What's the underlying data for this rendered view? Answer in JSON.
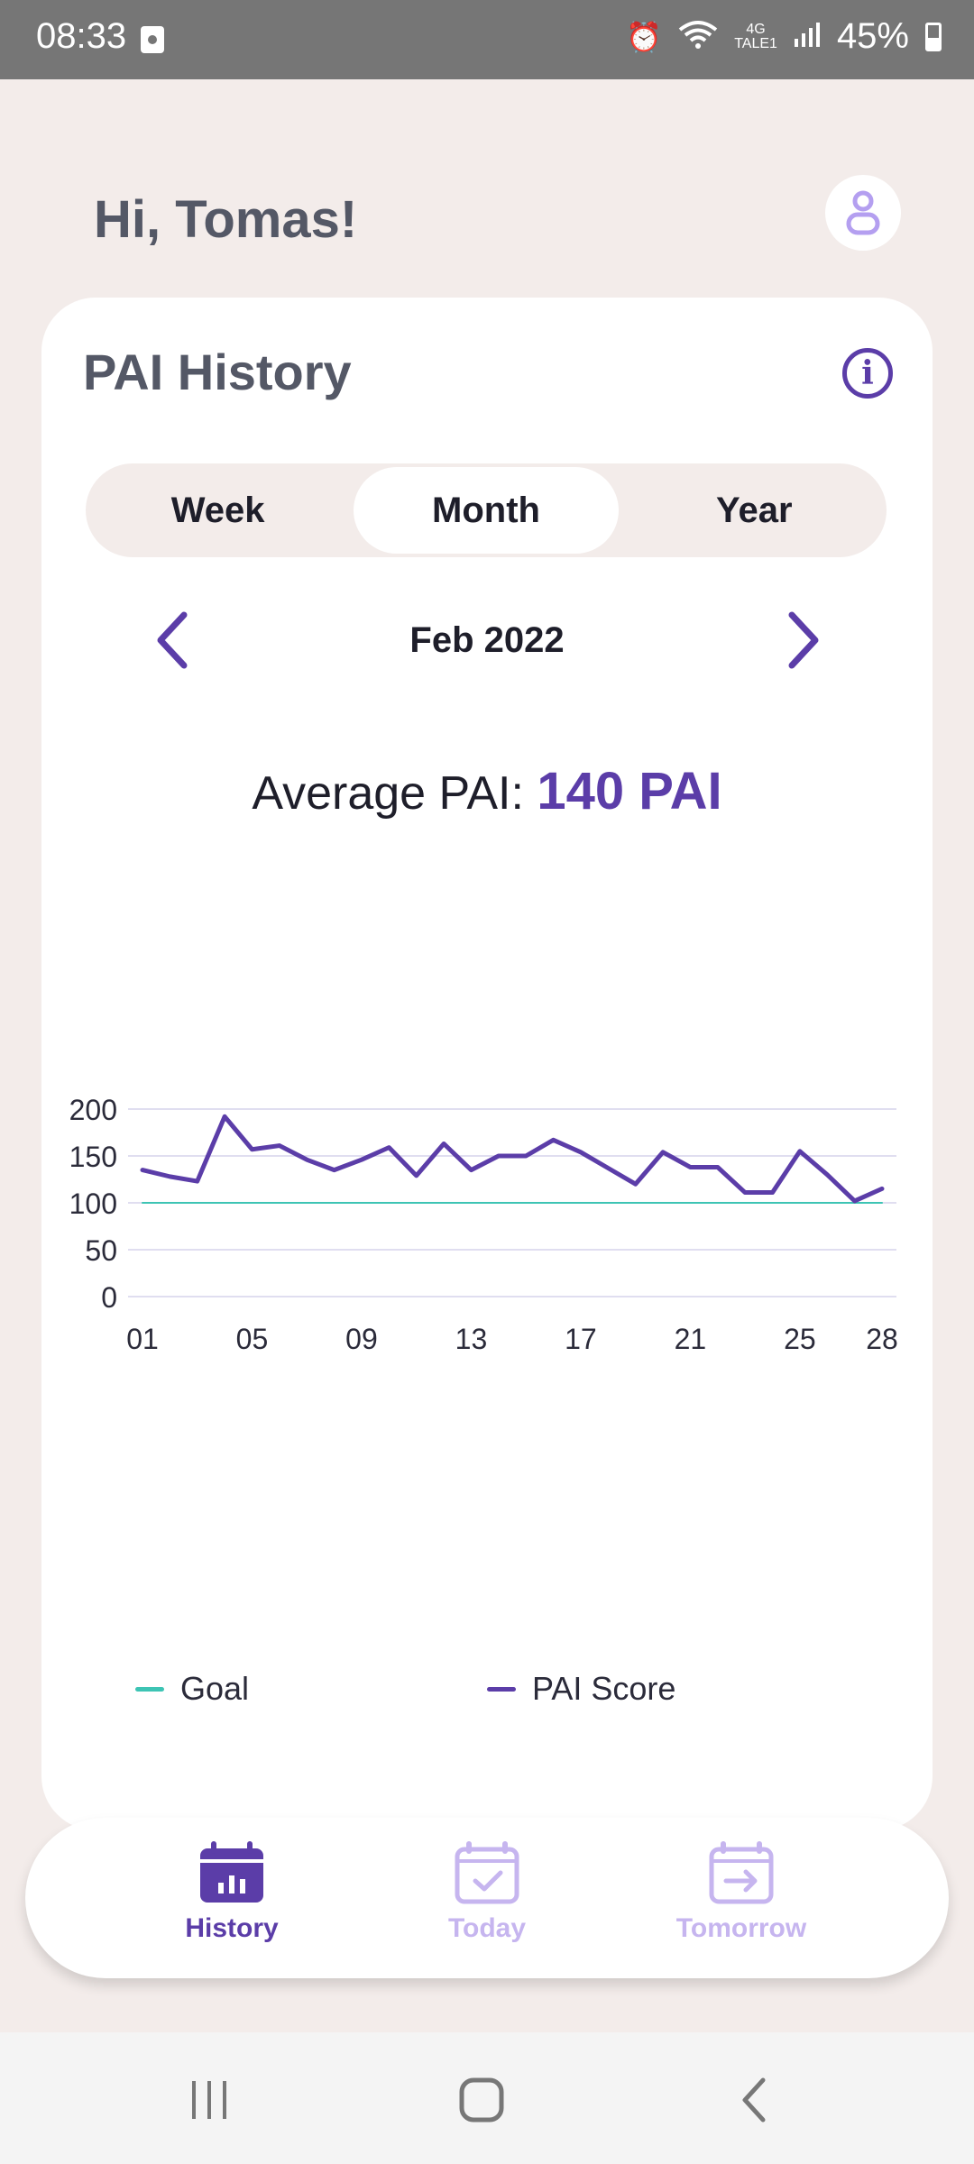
{
  "status_bar": {
    "time": "08:33",
    "network_type": "4G",
    "network_sub": "TALE1",
    "battery": "45%"
  },
  "header": {
    "greeting": "Hi, Tomas!"
  },
  "card": {
    "title": "PAI History",
    "tabs": [
      {
        "label": "Week",
        "active": false
      },
      {
        "label": "Month",
        "active": true
      },
      {
        "label": "Year",
        "active": false
      }
    ],
    "period": "Feb 2022",
    "average_label": "Average PAI:",
    "average_value": "140 PAI"
  },
  "chart_data": {
    "type": "line",
    "x": [
      1,
      2,
      3,
      4,
      5,
      6,
      7,
      8,
      9,
      10,
      11,
      12,
      13,
      14,
      15,
      16,
      17,
      18,
      19,
      20,
      21,
      22,
      23,
      24,
      25,
      26,
      27,
      28
    ],
    "x_tick_labels": [
      "01",
      "05",
      "09",
      "13",
      "17",
      "21",
      "25",
      "28"
    ],
    "x_ticks": [
      1,
      5,
      9,
      13,
      17,
      21,
      25,
      28
    ],
    "y_ticks": [
      0,
      50,
      100,
      150,
      200
    ],
    "ylim": [
      0,
      200
    ],
    "grid": true,
    "legend_position": "bottom",
    "series": [
      {
        "name": "Goal",
        "color": "#3dc4b4",
        "values": [
          100,
          100,
          100,
          100,
          100,
          100,
          100,
          100,
          100,
          100,
          100,
          100,
          100,
          100,
          100,
          100,
          100,
          100,
          100,
          100,
          100,
          100,
          100,
          100,
          100,
          100,
          100,
          100
        ]
      },
      {
        "name": "PAI Score",
        "color": "#5b3da8",
        "values": [
          135,
          128,
          123,
          192,
          157,
          161,
          146,
          135,
          146,
          159,
          129,
          163,
          135,
          150,
          150,
          167,
          154,
          137,
          120,
          154,
          138,
          138,
          111,
          111,
          155,
          130,
          102,
          115
        ]
      }
    ]
  },
  "bottom_nav": {
    "items": [
      {
        "label": "History",
        "icon": "calendar-chart-icon",
        "active": true
      },
      {
        "label": "Today",
        "icon": "calendar-check-icon",
        "active": false
      },
      {
        "label": "Tomorrow",
        "icon": "calendar-arrow-icon",
        "active": false
      }
    ]
  },
  "colors": {
    "accent": "#5b3da8",
    "accent_light": "#c6b5ef",
    "goal": "#3dc4b4",
    "background": "#f3ecea"
  }
}
